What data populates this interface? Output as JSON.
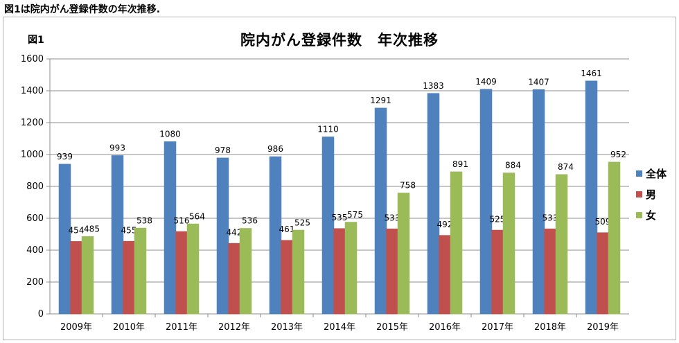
{
  "caption": "図1は院内がん登録件数の年次推移.",
  "figure_label": "図1",
  "chart_data": {
    "type": "bar",
    "title": "院内がん登録件数　年次推移",
    "xlabel": "",
    "ylabel": "",
    "ylim": [
      0,
      1600
    ],
    "yticks": [
      0,
      200,
      400,
      600,
      800,
      1000,
      1200,
      1400,
      1600
    ],
    "grid": true,
    "legend_position": "right",
    "categories": [
      "2009年",
      "2010年",
      "2011年",
      "2012年",
      "2013年",
      "2014年",
      "2015年",
      "2016年",
      "2017年",
      "2018年",
      "2019年"
    ],
    "series": [
      {
        "name": "全体",
        "color": "#4f81bd",
        "values": [
          939,
          993,
          1080,
          978,
          986,
          1110,
          1291,
          1383,
          1409,
          1407,
          1461
        ]
      },
      {
        "name": "男",
        "color": "#c0504d",
        "values": [
          454,
          455,
          516,
          442,
          461,
          535,
          533,
          492,
          525,
          533,
          509
        ]
      },
      {
        "name": "女",
        "color": "#9bbb59",
        "values": [
          485,
          538,
          564,
          536,
          525,
          575,
          758,
          891,
          884,
          874,
          952
        ]
      }
    ]
  }
}
